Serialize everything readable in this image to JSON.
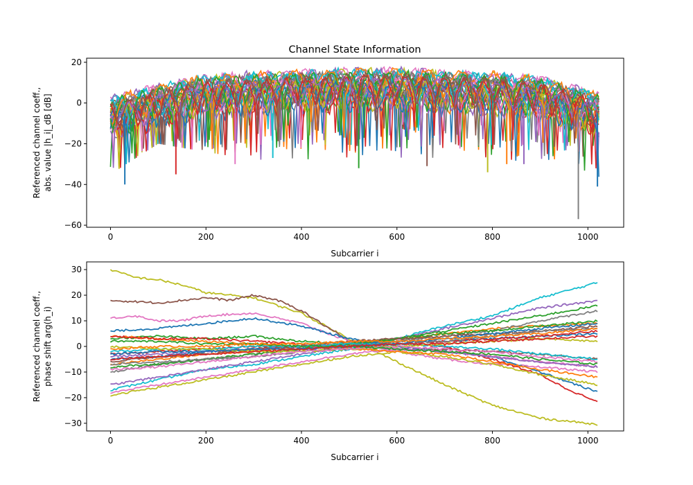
{
  "chart_data": [
    {
      "type": "line",
      "title": "Channel State Information",
      "xlabel": "Subcarrier i",
      "ylabel_line1": "Referenced channel coeff.,",
      "ylabel_line2": "abs. value |h_i|_dB [dB]",
      "xlim": [
        -50,
        1075
      ],
      "ylim": [
        -61,
        22
      ],
      "xticks": [
        0,
        200,
        400,
        600,
        800,
        1000
      ],
      "yticks": [
        -60,
        -40,
        -20,
        0,
        20
      ],
      "grid": false,
      "series_count": 36,
      "envelope": {
        "x": [
          0,
          100,
          200,
          300,
          400,
          500,
          600,
          700,
          800,
          900,
          1023
        ],
        "upper": [
          4,
          10,
          15,
          16,
          17,
          18,
          18,
          17,
          16,
          14,
          6
        ],
        "lower": [
          -35,
          -20,
          -24,
          -28,
          -27,
          -32,
          -30,
          -28,
          -34,
          -37,
          -57
        ]
      },
      "notable_dips": [
        {
          "x": 30,
          "y": -40
        },
        {
          "x": 137,
          "y": -35
        },
        {
          "x": 261,
          "y": -30
        },
        {
          "x": 340,
          "y": -27
        },
        {
          "x": 520,
          "y": -32
        },
        {
          "x": 663,
          "y": -31
        },
        {
          "x": 790,
          "y": -34
        },
        {
          "x": 830,
          "y": -30
        },
        {
          "x": 866,
          "y": -30
        },
        {
          "x": 980,
          "y": -57
        },
        {
          "x": 1020,
          "y": -41
        }
      ]
    },
    {
      "type": "line",
      "title": "",
      "xlabel": "Subcarrier i",
      "ylabel_line1": "Referenced channel coeff.,",
      "ylabel_line2": "phase shift arg(h_i)",
      "xlim": [
        -50,
        1075
      ],
      "ylim": [
        -33,
        33
      ],
      "xticks": [
        0,
        200,
        400,
        600,
        800,
        1000
      ],
      "yticks": [
        -30,
        -20,
        -10,
        0,
        10,
        20,
        30
      ],
      "grid": false,
      "series": [
        {
          "color": "#bcbd22",
          "x": [
            0,
            50,
            100,
            150,
            200,
            300,
            350,
            400,
            450,
            500,
            600,
            700,
            800,
            900,
            1023
          ],
          "values": [
            30,
            27,
            26,
            24,
            21,
            19,
            16,
            13,
            8,
            3,
            -6,
            -15,
            -23,
            -28,
            -30.5
          ]
        },
        {
          "color": "#17becf",
          "x": [
            0,
            50,
            100,
            150,
            200,
            300,
            400,
            500,
            600,
            700,
            800,
            900,
            1023
          ],
          "values": [
            -17,
            -15,
            -13,
            -11,
            -9,
            -7,
            -4,
            -1,
            3,
            8,
            12,
            19,
            25
          ]
        },
        {
          "color": "#8c564b",
          "x": [
            0,
            50,
            100,
            150,
            200,
            250,
            300,
            350,
            400,
            450,
            500,
            600,
            700,
            800,
            900,
            1023
          ],
          "values": [
            18,
            17.5,
            17,
            18,
            19,
            18,
            20,
            18,
            14,
            8,
            2,
            -1,
            -1,
            -2,
            -3,
            -5
          ]
        },
        {
          "color": "#9467bd",
          "x": [
            0,
            100,
            200,
            300,
            400,
            500,
            600,
            700,
            800,
            900,
            1023
          ],
          "values": [
            -15,
            -12,
            -9,
            -6,
            -3,
            0,
            3,
            7,
            11,
            15,
            18
          ]
        },
        {
          "color": "#e377c2",
          "x": [
            0,
            50,
            100,
            150,
            200,
            300,
            400,
            500,
            600,
            700,
            800,
            900,
            1023
          ],
          "values": [
            11,
            12,
            10,
            10,
            12,
            13,
            9,
            2,
            -2,
            -5,
            -7,
            -8,
            -10
          ]
        },
        {
          "color": "#d62728",
          "x": [
            0,
            100,
            200,
            300,
            400,
            500,
            600,
            700,
            800,
            900,
            950,
            1023
          ],
          "values": [
            -3,
            -2,
            -1,
            0,
            0,
            1,
            1,
            0,
            -5,
            -11,
            -16,
            -22
          ]
        },
        {
          "color": "#1f77b4",
          "x": [
            0,
            100,
            200,
            300,
            400,
            500,
            600,
            700,
            800,
            900,
            1023
          ],
          "values": [
            6,
            7,
            9,
            11,
            8,
            3,
            0,
            -2,
            -4,
            -10,
            -18
          ]
        },
        {
          "color": "#ff7f0e",
          "x": [
            0,
            100,
            200,
            300,
            400,
            500,
            600,
            700,
            800,
            900,
            1023
          ],
          "values": [
            -7,
            -5,
            -3,
            -2,
            0,
            1,
            3,
            5,
            7,
            8,
            9
          ]
        },
        {
          "color": "#2ca02c",
          "x": [
            0,
            100,
            200,
            300,
            400,
            500,
            600,
            700,
            800,
            900,
            1023
          ],
          "values": [
            3,
            4,
            3,
            4,
            2,
            1,
            3,
            6,
            9,
            12,
            16
          ]
        },
        {
          "color": "#7f7f7f",
          "x": [
            0,
            100,
            200,
            300,
            400,
            500,
            600,
            700,
            800,
            900,
            1023
          ],
          "values": [
            -10,
            -7,
            -5,
            -3,
            -1,
            0,
            2,
            4,
            6,
            10,
            14
          ]
        },
        {
          "color": "#e377c2",
          "x": [
            0,
            100,
            200,
            300,
            400,
            500,
            600,
            700,
            800,
            900,
            1023
          ],
          "values": [
            -18,
            -15,
            -12,
            -9,
            -6,
            -3,
            -1,
            -2,
            -4,
            -6,
            -8
          ]
        },
        {
          "color": "#bcbd22",
          "x": [
            0,
            100,
            200,
            300,
            400,
            500,
            600,
            700,
            800,
            900,
            1023
          ],
          "values": [
            -19,
            -16,
            -13,
            -10,
            -7,
            -4,
            -2,
            -4,
            -7,
            -11,
            -15
          ]
        },
        {
          "color": "#1f77b4",
          "x": [
            0,
            100,
            200,
            300,
            400,
            500,
            600,
            700,
            800,
            900,
            1023
          ],
          "values": [
            -5,
            -4,
            -2,
            -1,
            0,
            1,
            2,
            2,
            3,
            4,
            5
          ]
        },
        {
          "color": "#ff7f0e",
          "x": [
            0,
            100,
            200,
            300,
            400,
            500,
            600,
            700,
            800,
            900,
            1023
          ],
          "values": [
            4,
            3,
            2,
            1,
            0,
            -1,
            -2,
            -3,
            -6,
            -9,
            -12
          ]
        },
        {
          "color": "#2ca02c",
          "x": [
            0,
            100,
            200,
            300,
            400,
            500,
            600,
            700,
            800,
            900,
            1023
          ],
          "values": [
            -8,
            -7,
            -5,
            -3,
            -1,
            1,
            3,
            5,
            6,
            8,
            10
          ]
        },
        {
          "color": "#d62728",
          "x": [
            0,
            100,
            200,
            300,
            400,
            500,
            600,
            700,
            800,
            900,
            1023
          ],
          "values": [
            4,
            3,
            3,
            2,
            1,
            0,
            1,
            2,
            3,
            4,
            6
          ]
        },
        {
          "color": "#9467bd",
          "x": [
            0,
            100,
            200,
            300,
            400,
            500,
            600,
            700,
            800,
            900,
            1023
          ],
          "values": [
            -4,
            -3,
            -2,
            -1,
            0,
            0,
            -1,
            -2,
            -4,
            -6,
            -8
          ]
        },
        {
          "color": "#8c564b",
          "x": [
            0,
            100,
            200,
            300,
            400,
            500,
            600,
            700,
            800,
            900,
            1023
          ],
          "values": [
            -6,
            -4,
            -3,
            -1,
            0,
            2,
            3,
            4,
            5,
            6,
            8
          ]
        },
        {
          "color": "#17becf",
          "x": [
            0,
            100,
            200,
            300,
            400,
            500,
            600,
            700,
            800,
            900,
            1023
          ],
          "values": [
            -2,
            -1,
            -1,
            0,
            0,
            1,
            1,
            0,
            -1,
            -3,
            -5
          ]
        },
        {
          "color": "#7f7f7f",
          "x": [
            0,
            100,
            200,
            300,
            400,
            500,
            600,
            700,
            800,
            900,
            1023
          ],
          "values": [
            -7,
            -6,
            -5,
            -4,
            -2,
            -1,
            1,
            2,
            4,
            6,
            7
          ]
        },
        {
          "color": "#bcbd22",
          "x": [
            0,
            100,
            200,
            300,
            400,
            500,
            600,
            700,
            800,
            900,
            1023
          ],
          "values": [
            0,
            -1,
            -1,
            -2,
            -2,
            -1,
            0,
            1,
            2,
            3,
            2
          ]
        },
        {
          "color": "#e377c2",
          "x": [
            0,
            100,
            200,
            300,
            400,
            500,
            600,
            700,
            800,
            900,
            1023
          ],
          "values": [
            -9,
            -8,
            -6,
            -4,
            -2,
            -1,
            0,
            -1,
            -2,
            -4,
            -6
          ]
        },
        {
          "color": "#1f77b4",
          "x": [
            0,
            100,
            200,
            300,
            400,
            500,
            600,
            700,
            800,
            900,
            1023
          ],
          "values": [
            -3,
            -2,
            -2,
            -1,
            -1,
            0,
            1,
            3,
            5,
            7,
            9
          ]
        },
        {
          "color": "#2ca02c",
          "x": [
            0,
            100,
            200,
            300,
            400,
            500,
            600,
            700,
            800,
            900,
            1023
          ],
          "values": [
            2,
            2,
            1,
            1,
            0,
            0,
            -1,
            -2,
            -3,
            -5,
            -7
          ]
        },
        {
          "color": "#ff7f0e",
          "x": [
            0,
            100,
            200,
            300,
            400,
            500,
            600,
            700,
            800,
            900,
            1023
          ],
          "values": [
            -1,
            0,
            0,
            1,
            1,
            2,
            2,
            3,
            4,
            5,
            7
          ]
        },
        {
          "color": "#d62728",
          "x": [
            0,
            100,
            200,
            300,
            400,
            500,
            600,
            700,
            800,
            900,
            1023
          ],
          "values": [
            -5,
            -4,
            -3,
            -2,
            -1,
            0,
            1,
            1,
            2,
            3,
            4
          ]
        }
      ]
    }
  ]
}
